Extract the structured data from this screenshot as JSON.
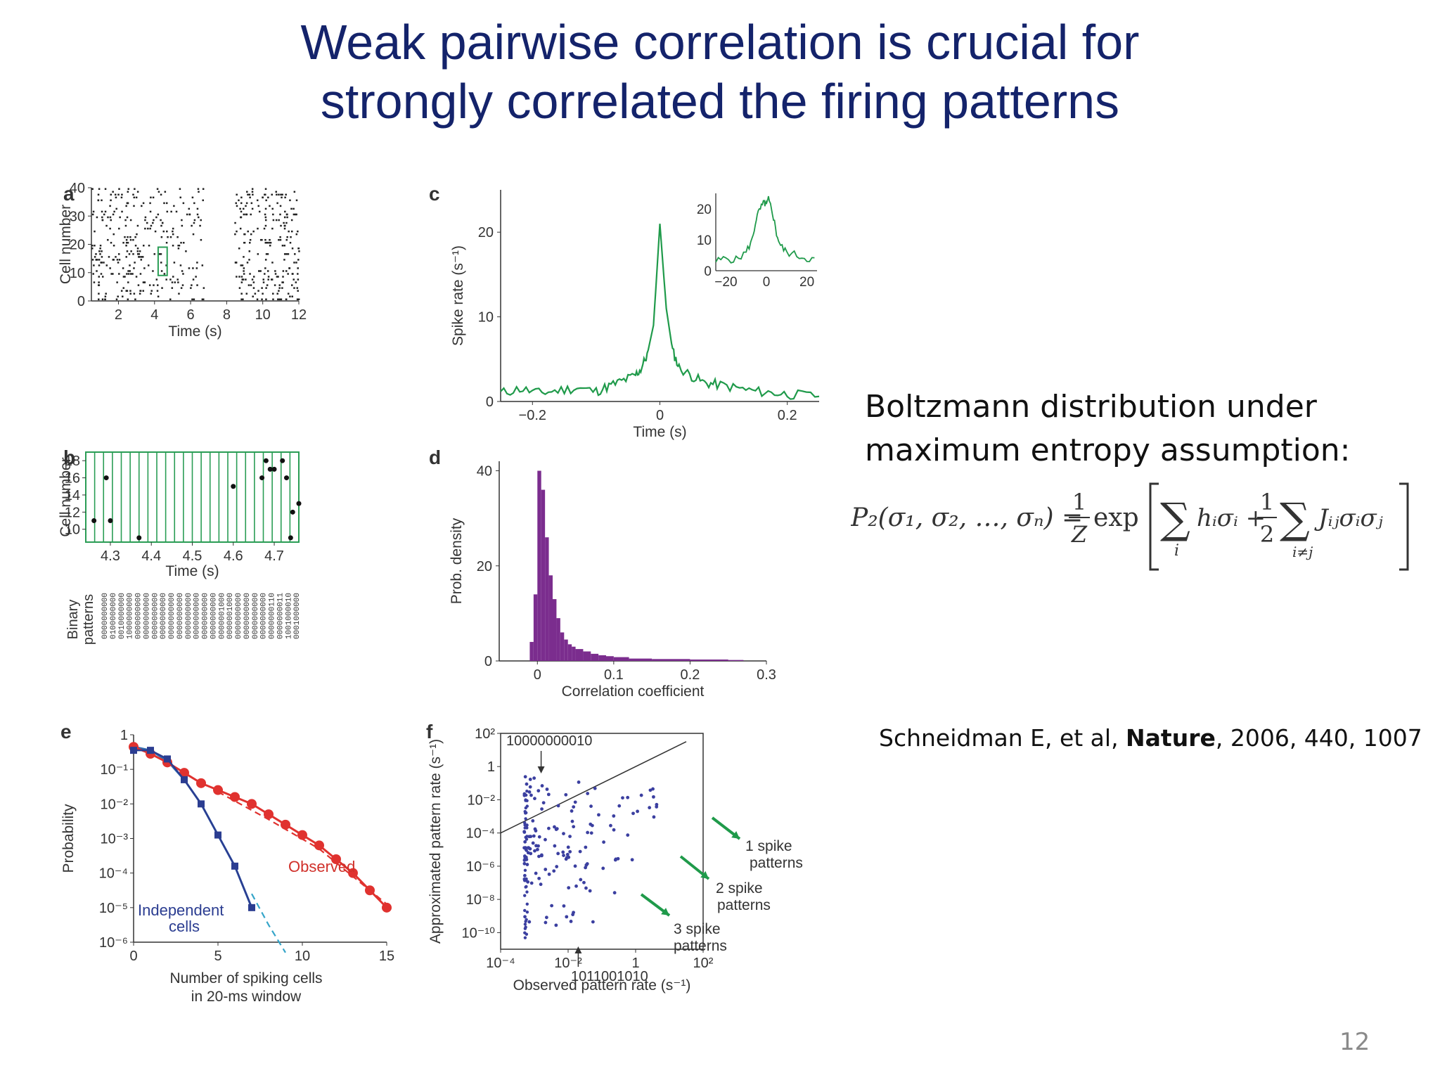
{
  "slide": {
    "title_line1": "Weak pairwise correlation is crucial for",
    "title_line2": "strongly correlated the firing patterns",
    "side_text_line1": "Boltzmann distribution under",
    "side_text_line2": "maximum entropy assumption:",
    "citation_prefix": "Schneidman E, et al, ",
    "citation_journal": "Nature",
    "citation_suffix": ", 2006, 440, 1007",
    "page_number": "12",
    "formula": {
      "lhs": "P₂(σ₁, σ₂, …, σₙ) =",
      "frac1_num": "1",
      "frac1_den": "Z",
      "exp": "exp",
      "sum1_sub": "i",
      "term1": "hᵢσᵢ +",
      "frac2_num": "1",
      "frac2_den": "2",
      "sum2_sub": "i≠j",
      "term2": "Jᵢⱼσᵢσⱼ"
    }
  },
  "chart_data": [
    {
      "panel": "a",
      "type": "scatter",
      "xlabel": "Time (s)",
      "ylabel": "Cell number",
      "xlim": [
        0.5,
        12
      ],
      "ylim": [
        0,
        40
      ],
      "xticks": [
        2,
        4,
        6,
        8,
        10,
        12
      ],
      "yticks": [
        0,
        10,
        20,
        30,
        40
      ],
      "highlight_box": {
        "x": [
          4.2,
          4.7
        ],
        "y": [
          9,
          19
        ],
        "color": "#2a9d55"
      },
      "spike_clusters": [
        {
          "x": [
            0.5,
            4.8
          ],
          "y": [
            0,
            40
          ]
        },
        {
          "x": [
            4.8,
            6.7
          ],
          "y": [
            0,
            40
          ]
        },
        {
          "x": [
            8.4,
            12
          ],
          "y": [
            0,
            40
          ]
        }
      ]
    },
    {
      "panel": "b",
      "type": "scatter",
      "xlabel": "Time (s)",
      "ylabel": "Cell number",
      "xlim": [
        4.24,
        4.76
      ],
      "ylim": [
        8.5,
        19
      ],
      "xticks": [
        4.3,
        4.4,
        4.5,
        4.6,
        4.7
      ],
      "yticks": [
        10,
        12,
        14,
        16,
        18
      ],
      "points": [
        [
          4.26,
          11
        ],
        [
          4.29,
          16
        ],
        [
          4.3,
          11
        ],
        [
          4.37,
          9
        ],
        [
          4.6,
          15
        ],
        [
          4.67,
          16
        ],
        [
          4.68,
          18
        ],
        [
          4.69,
          17
        ],
        [
          4.7,
          17
        ],
        [
          4.72,
          18
        ],
        [
          4.73,
          16
        ],
        [
          4.74,
          9
        ],
        [
          4.745,
          12
        ],
        [
          4.76,
          13
        ]
      ],
      "binary_patterns_label": "Binary patterns",
      "binary_patterns": [
        "0000000000",
        "0100000000",
        "0010000000",
        "1000000000",
        "0000000000",
        "0000000000",
        "0000000000",
        "0000000000",
        "0000000000",
        "0000000000",
        "0000000000",
        "0000000000",
        "0000000000",
        "0000000000",
        "0000001000",
        "0000001000",
        "0000000000",
        "0000000000",
        "0000000000",
        "0000000000",
        "0000000110",
        "0000000011",
        "1001000010",
        "0001000000"
      ]
    },
    {
      "panel": "c",
      "type": "line",
      "xlabel": "Time (s)",
      "ylabel": "Spike rate (s⁻¹)",
      "xlim": [
        -0.25,
        0.25
      ],
      "ylim": [
        0,
        25
      ],
      "xticks": [
        -0.2,
        0,
        0.2
      ],
      "yticks": [
        0,
        10,
        20
      ],
      "series": [
        {
          "color": "#1f9a4a",
          "x": [
            -0.25,
            -0.22,
            -0.19,
            -0.16,
            -0.13,
            -0.1,
            -0.08,
            -0.06,
            -0.04,
            -0.03,
            -0.02,
            -0.01,
            0,
            0.01,
            0.02,
            0.03,
            0.05,
            0.07,
            0.09,
            0.12,
            0.15,
            0.18,
            0.21,
            0.25
          ],
          "y": [
            1,
            1.5,
            1,
            1.3,
            1.6,
            1.2,
            1.8,
            2.4,
            3,
            3.8,
            5.5,
            9,
            21,
            11,
            6,
            4,
            3,
            2.2,
            2,
            1.6,
            1.2,
            1,
            0.8,
            0.6
          ]
        }
      ],
      "inset": {
        "xlim": [
          -25,
          25
        ],
        "ylim": [
          0,
          25
        ],
        "xticks": [
          -20,
          0,
          20
        ],
        "yticks": [
          0,
          10,
          20
        ],
        "x": [
          -25,
          -20,
          -15,
          -10,
          -7,
          -5,
          -3,
          -1,
          0,
          1,
          3,
          5,
          7,
          10,
          15,
          20,
          25
        ],
        "y": [
          3,
          4,
          3.5,
          6,
          10,
          17,
          20,
          22,
          21,
          23,
          19,
          12,
          8,
          6,
          5,
          4,
          3.5
        ]
      }
    },
    {
      "panel": "d",
      "type": "bar",
      "xlabel": "Correlation coefficient",
      "ylabel": "Prob. density",
      "xlim": [
        -0.05,
        0.3
      ],
      "ylim": [
        0,
        42
      ],
      "xticks": [
        0,
        0.1,
        0.2,
        0.3
      ],
      "yticks": [
        0,
        20,
        40
      ],
      "bin_width": 0.005,
      "bins": [
        -0.01,
        -0.005,
        0,
        0.005,
        0.01,
        0.015,
        0.02,
        0.025,
        0.03,
        0.035,
        0.04,
        0.045,
        0.05,
        0.06,
        0.07,
        0.08,
        0.09,
        0.1,
        0.12,
        0.15,
        0.2,
        0.25
      ],
      "values": [
        4,
        14,
        40,
        36,
        26,
        18,
        13,
        9,
        6,
        4.5,
        3.5,
        3,
        2.5,
        2,
        1.5,
        1.2,
        1,
        0.8,
        0.5,
        0.4,
        0.3,
        0.2
      ],
      "color": "#7b2d8e"
    },
    {
      "panel": "e",
      "type": "line",
      "yscale": "log",
      "xlabel": "Number of spiking cells in 20-ms window",
      "ylabel": "Probability",
      "xlim": [
        0,
        15
      ],
      "ylim": [
        1e-06,
        1
      ],
      "xticks": [
        0,
        5,
        10,
        15
      ],
      "ytick_labels": [
        "1",
        "10⁻¹",
        "10⁻²",
        "10⁻³",
        "10⁻⁴",
        "10⁻⁵",
        "10⁻⁶"
      ],
      "series": [
        {
          "name": "Observed",
          "color": "#e0322f",
          "x": [
            0,
            1,
            2,
            3,
            4,
            5,
            6,
            7,
            8,
            9,
            10,
            11,
            12,
            13,
            14,
            15
          ],
          "log10_y": [
            -0.35,
            -0.55,
            -0.8,
            -1.1,
            -1.4,
            -1.6,
            -1.8,
            -2.0,
            -2.3,
            -2.6,
            -2.9,
            -3.2,
            -3.6,
            -4.0,
            -4.5,
            -5.0
          ]
        },
        {
          "name": "Independent cells",
          "color": "#2b3d91",
          "x": [
            0,
            1,
            2,
            3,
            4,
            5,
            6,
            7
          ],
          "log10_y": [
            -0.45,
            -0.45,
            -0.7,
            -1.3,
            -2.0,
            -2.9,
            -3.8,
            -5.0
          ]
        }
      ],
      "fit_solid": {
        "color": "#2a6ab0",
        "x": [
          0,
          1,
          2,
          3,
          4,
          5,
          6,
          7
        ],
        "log10_y": [
          -0.35,
          -0.45,
          -0.75,
          -1.3,
          -2.0,
          -2.9,
          -3.8,
          -5.0
        ]
      },
      "fit_dashed": [
        {
          "color": "#e0322f",
          "x": [
            5,
            8,
            11,
            15
          ],
          "log10_y": [
            -1.65,
            -2.45,
            -3.3,
            -4.9
          ]
        },
        {
          "color": "#35a5c9",
          "x": [
            7,
            8,
            9
          ],
          "log10_y": [
            -4.6,
            -5.5,
            -6.3
          ]
        }
      ],
      "labels": {
        "observed": "Observed",
        "independent_line1": "Independent",
        "independent_line2": "cells"
      }
    },
    {
      "panel": "f",
      "type": "scatter",
      "xscale": "log",
      "yscale": "log",
      "xlabel": "Observed pattern rate (s⁻¹)",
      "ylabel": "Approximated pattern rate (s⁻¹)",
      "xlim_log10": [
        -4,
        2
      ],
      "ylim_log10": [
        -11,
        2
      ],
      "xtick_labels": [
        "10⁻⁴",
        "10⁻²",
        "1",
        "10²"
      ],
      "ytick_labels": [
        "10²",
        "1",
        "10⁻²",
        "10⁻⁴",
        "10⁻⁶",
        "10⁻⁸",
        "10⁻¹⁰"
      ],
      "annotations": {
        "top": "10000000010",
        "bottom": "1011001010",
        "spike1_a": "1 spike",
        "spike1_b": "patterns",
        "spike2_a": "2 spike",
        "spike2_b": "patterns",
        "spike3_a": "3 spike",
        "spike3_b": "patterns"
      },
      "diagonal": {
        "log10_x": [
          -4,
          1.5
        ],
        "log10_y": [
          -4,
          1.5
        ]
      },
      "point_color": "#3b3fa0"
    }
  ]
}
